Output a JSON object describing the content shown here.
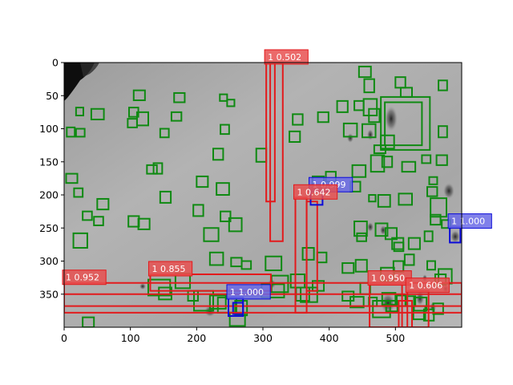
{
  "chart_data": {
    "type": "scatter",
    "title": "",
    "xlabel": "",
    "ylabel": "",
    "xlim": [
      0,
      600
    ],
    "ylim": [
      400,
      0
    ],
    "x_ticks": [
      "0",
      "100",
      "200",
      "300",
      "400",
      "500"
    ],
    "y_ticks": [
      "0",
      "50",
      "100",
      "150",
      "200",
      "250",
      "300",
      "350"
    ],
    "grid": false,
    "background": "grayscale lunar surface image with craters and boulders",
    "colors": {
      "red": "#e31a1c",
      "blue": "#0b0bd8",
      "green": "#0f8a12",
      "red_label": "#e85050",
      "blue_label": "#6a6ae6"
    },
    "labeled_boxes": [
      {
        "text": "1 0.502",
        "color": "red",
        "x0": 305,
        "y0": 0,
        "x1": 318,
        "y1": 210
      },
      {
        "text": "1 0.999",
        "color": "blue",
        "x0": 372,
        "y0": 193,
        "x1": 390,
        "y1": 215
      },
      {
        "text": "1 0.642",
        "color": "red",
        "x0": 349,
        "y0": 204,
        "x1": 366,
        "y1": 378
      },
      {
        "text": "1 1.000",
        "color": "blue",
        "x0": 582,
        "y0": 248,
        "x1": 598,
        "y1": 272
      },
      {
        "text": "1 0.855",
        "color": "red",
        "x0": 130,
        "y0": 320,
        "x1": 312,
        "y1": 345
      },
      {
        "text": "1 0.952",
        "color": "red",
        "x0": 0,
        "y0": 333,
        "x1": 600,
        "y1": 378
      },
      {
        "text": "1 0.950",
        "color": "red",
        "x0": 461,
        "y0": 334,
        "x1": 510,
        "y1": 400
      },
      {
        "text": "1 1.000",
        "color": "blue",
        "x0": 248,
        "y0": 355,
        "x1": 270,
        "y1": 383
      },
      {
        "text": "1 0.606",
        "color": "red",
        "x0": 518,
        "y0": 345,
        "x1": 550,
        "y1": 400
      }
    ],
    "extra_boxes": [
      {
        "color": "red",
        "x0": 311,
        "y0": 0,
        "x1": 330,
        "y1": 270
      },
      {
        "color": "red",
        "x0": 366,
        "y0": 210,
        "x1": 382,
        "y1": 345
      },
      {
        "color": "red",
        "x0": 0,
        "y0": 350,
        "x1": 600,
        "y1": 368
      },
      {
        "color": "red",
        "x0": 505,
        "y0": 360,
        "x1": 525,
        "y1": 400
      },
      {
        "color": "blue",
        "x0": 255,
        "y0": 363,
        "x1": 270,
        "y1": 380
      }
    ],
    "green_boxes": [
      [
        445,
        6,
        463,
        22
      ],
      [
        565,
        27,
        578,
        42
      ],
      [
        453,
        25,
        468,
        45
      ],
      [
        500,
        22,
        515,
        38
      ],
      [
        508,
        38,
        525,
        52
      ],
      [
        105,
        42,
        122,
        57
      ],
      [
        166,
        46,
        182,
        60
      ],
      [
        235,
        48,
        246,
        58
      ],
      [
        246,
        56,
        257,
        66
      ],
      [
        18,
        68,
        29,
        80
      ],
      [
        41,
        70,
        60,
        86
      ],
      [
        98,
        68,
        112,
        82
      ],
      [
        110,
        75,
        127,
        95
      ],
      [
        162,
        75,
        177,
        88
      ],
      [
        96,
        85,
        110,
        98
      ],
      [
        4,
        98,
        16,
        112
      ],
      [
        18,
        100,
        31,
        112
      ],
      [
        145,
        100,
        158,
        113
      ],
      [
        236,
        94,
        249,
        108
      ],
      [
        345,
        78,
        360,
        94
      ],
      [
        383,
        75,
        399,
        90
      ],
      [
        412,
        58,
        428,
        75
      ],
      [
        438,
        58,
        452,
        72
      ],
      [
        452,
        55,
        472,
        80
      ],
      [
        460,
        70,
        476,
        90
      ],
      [
        478,
        52,
        552,
        132
      ],
      [
        484,
        60,
        540,
        125
      ],
      [
        565,
        96,
        578,
        113
      ],
      [
        450,
        93,
        470,
        113
      ],
      [
        422,
        92,
        442,
        112
      ],
      [
        340,
        104,
        356,
        120
      ],
      [
        478,
        110,
        498,
        130
      ],
      [
        468,
        125,
        485,
        137
      ],
      [
        290,
        130,
        305,
        150
      ],
      [
        225,
        130,
        240,
        147
      ],
      [
        3,
        168,
        20,
        182
      ],
      [
        125,
        155,
        140,
        168
      ],
      [
        135,
        152,
        148,
        168
      ],
      [
        540,
        140,
        553,
        152
      ],
      [
        562,
        140,
        578,
        155
      ],
      [
        463,
        140,
        483,
        165
      ],
      [
        480,
        142,
        495,
        158
      ],
      [
        510,
        150,
        530,
        165
      ],
      [
        435,
        155,
        455,
        173
      ],
      [
        432,
        180,
        447,
        195
      ],
      [
        395,
        165,
        410,
        180
      ],
      [
        375,
        172,
        392,
        190
      ],
      [
        145,
        195,
        161,
        212
      ],
      [
        200,
        172,
        217,
        188
      ],
      [
        230,
        182,
        249,
        200
      ],
      [
        15,
        190,
        28,
        203
      ],
      [
        50,
        206,
        67,
        222
      ],
      [
        97,
        232,
        113,
        248
      ],
      [
        112,
        236,
        129,
        252
      ],
      [
        460,
        200,
        470,
        210
      ],
      [
        474,
        200,
        492,
        218
      ],
      [
        505,
        198,
        525,
        215
      ],
      [
        548,
        188,
        563,
        202
      ],
      [
        551,
        173,
        563,
        184
      ],
      [
        553,
        205,
        577,
        233
      ],
      [
        28,
        225,
        42,
        238
      ],
      [
        45,
        233,
        59,
        246
      ],
      [
        195,
        215,
        210,
        232
      ],
      [
        236,
        225,
        251,
        240
      ],
      [
        249,
        235,
        268,
        255
      ],
      [
        211,
        250,
        233,
        270
      ],
      [
        438,
        240,
        457,
        262
      ],
      [
        470,
        243,
        488,
        262
      ],
      [
        485,
        250,
        502,
        267
      ],
      [
        442,
        258,
        456,
        270
      ],
      [
        495,
        265,
        512,
        282
      ],
      [
        498,
        272,
        512,
        285
      ],
      [
        520,
        265,
        537,
        282
      ],
      [
        544,
        255,
        556,
        270
      ],
      [
        553,
        230,
        568,
        245
      ],
      [
        570,
        238,
        583,
        250
      ],
      [
        14,
        258,
        35,
        280
      ],
      [
        220,
        287,
        240,
        306
      ],
      [
        252,
        295,
        268,
        308
      ],
      [
        268,
        300,
        282,
        312
      ],
      [
        304,
        293,
        328,
        314
      ],
      [
        360,
        280,
        377,
        298
      ],
      [
        382,
        287,
        396,
        302
      ],
      [
        420,
        303,
        437,
        318
      ],
      [
        440,
        298,
        457,
        316
      ],
      [
        478,
        310,
        498,
        330
      ],
      [
        497,
        300,
        512,
        316
      ],
      [
        514,
        290,
        528,
        306
      ],
      [
        548,
        300,
        560,
        313
      ],
      [
        565,
        312,
        585,
        334
      ],
      [
        560,
        320,
        576,
        336
      ],
      [
        168,
        319,
        190,
        341
      ],
      [
        127,
        328,
        160,
        352
      ],
      [
        143,
        340,
        162,
        358
      ],
      [
        187,
        345,
        202,
        360
      ],
      [
        196,
        345,
        225,
        375
      ],
      [
        220,
        352,
        244,
        372
      ],
      [
        232,
        355,
        260,
        378
      ],
      [
        258,
        360,
        276,
        382
      ],
      [
        298,
        335,
        332,
        355
      ],
      [
        313,
        322,
        338,
        347
      ],
      [
        342,
        320,
        363,
        340
      ],
      [
        350,
        340,
        370,
        360
      ],
      [
        357,
        340,
        382,
        362
      ],
      [
        375,
        330,
        392,
        345
      ],
      [
        420,
        346,
        437,
        360
      ],
      [
        432,
        354,
        452,
        370
      ],
      [
        447,
        333,
        462,
        350
      ],
      [
        460,
        355,
        472,
        368
      ],
      [
        466,
        360,
        492,
        385
      ],
      [
        480,
        348,
        500,
        366
      ],
      [
        486,
        360,
        503,
        376
      ],
      [
        502,
        352,
        515,
        368
      ],
      [
        516,
        353,
        530,
        368
      ],
      [
        528,
        355,
        547,
        375
      ],
      [
        527,
        368,
        545,
        388
      ],
      [
        543,
        373,
        558,
        390
      ],
      [
        557,
        364,
        572,
        380
      ],
      [
        28,
        385,
        45,
        400
      ],
      [
        250,
        378,
        273,
        398
      ]
    ]
  }
}
